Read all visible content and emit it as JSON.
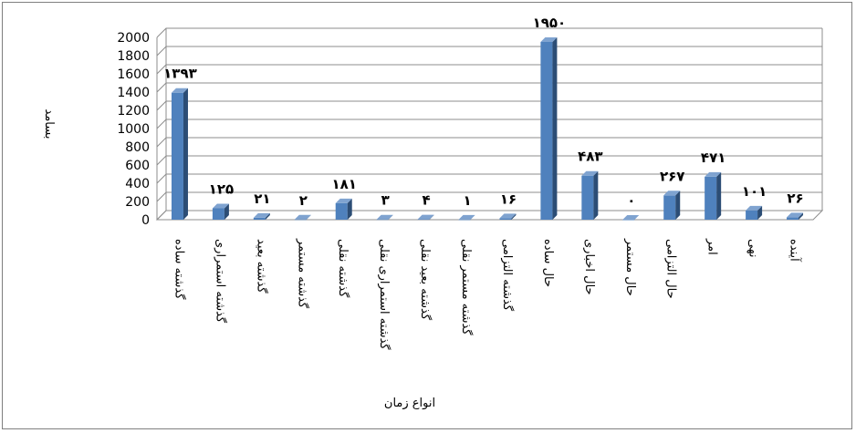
{
  "chart_data": {
    "type": "bar",
    "ylabel": "بسامد",
    "xlabel": "انواع زمان",
    "ylim": [
      0,
      2000
    ],
    "yticks": [
      "0",
      "200",
      "400",
      "600",
      "800",
      "1000",
      "1200",
      "1400",
      "1600",
      "1800",
      "2000"
    ],
    "grid": true,
    "legend": "none",
    "bar_color": "#4f81bd",
    "categories": [
      "گذشته ساده",
      "گذشته استمراری",
      "گذشته بعید",
      "گذشته مستمر",
      "گذشته نقلی",
      "گذشته استمراری نقلی",
      "گذشته بعید نقلی",
      "گذشته مستمر نقلی",
      "گذشته التزامی",
      "حال ساده",
      "حال اخباری",
      "حال مستمر",
      "حال التزامی",
      "امر",
      "نهی",
      "آینده"
    ],
    "values": [
      1393,
      125,
      21,
      2,
      181,
      3,
      4,
      1,
      16,
      1950,
      483,
      0,
      267,
      471,
      101,
      26
    ],
    "data_labels": [
      "۱۳۹۳",
      "۱۲۵",
      "۲۱",
      "۲",
      "۱۸۱",
      "۳",
      "۴",
      "۱",
      "۱۶",
      "۱۹۵۰",
      "۴۸۳",
      "۰",
      "۲۶۷",
      "۴۷۱",
      "۱۰۱",
      "۲۶"
    ]
  }
}
